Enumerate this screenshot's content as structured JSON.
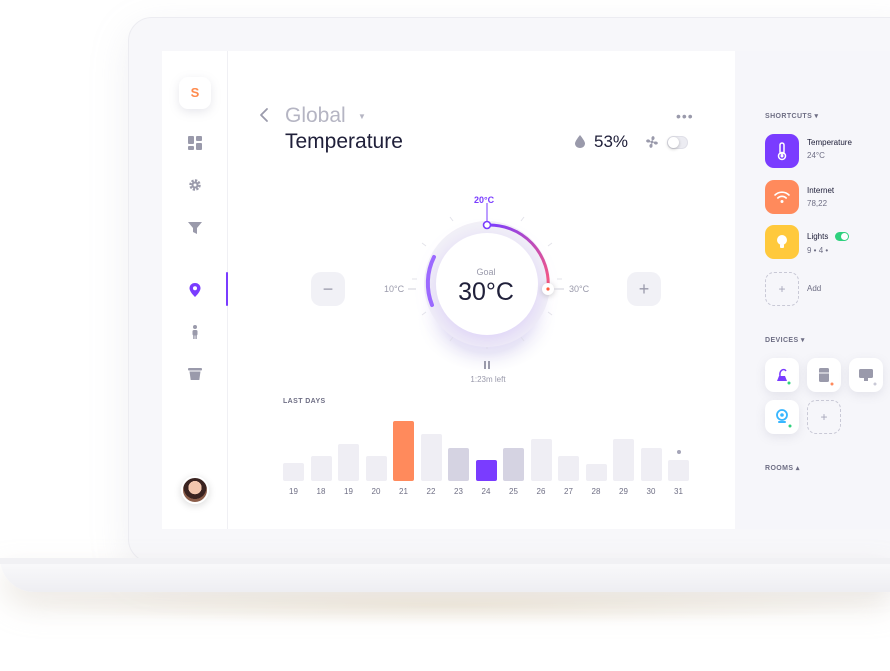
{
  "header": {
    "breadcrumb": "Global",
    "title": "Temperature",
    "humidity": "53%",
    "fan_on": false
  },
  "thermostat": {
    "setpoint_label": "20°C",
    "goal_label": "Goal",
    "goal_value": "30°C",
    "min_label": "10°C",
    "max_label": "30°C",
    "timer": "1:23m left",
    "decrease_label": "−",
    "increase_label": "+"
  },
  "history": {
    "title": "LAST DAYS",
    "days": [
      {
        "label": "19",
        "level": 0.3,
        "color": "#efeef4"
      },
      {
        "label": "18",
        "level": 0.42,
        "color": "#efeef4"
      },
      {
        "label": "19",
        "level": 0.62,
        "color": "#efeef4"
      },
      {
        "label": "20",
        "level": 0.42,
        "color": "#efeef4"
      },
      {
        "label": "21",
        "level": 1.0,
        "color": "#ff8a5c"
      },
      {
        "label": "22",
        "level": 0.78,
        "color": "#efeef4"
      },
      {
        "label": "23",
        "level": 0.55,
        "color": "#d5d3e2"
      },
      {
        "label": "24",
        "level": 0.35,
        "color": "#7a3cff"
      },
      {
        "label": "25",
        "level": 0.55,
        "color": "#d5d3e2"
      },
      {
        "label": "26",
        "level": 0.7,
        "color": "#efeef4"
      },
      {
        "label": "27",
        "level": 0.42,
        "color": "#efeef4"
      },
      {
        "label": "28",
        "level": 0.28,
        "color": "#efeef4"
      },
      {
        "label": "29",
        "level": 0.7,
        "color": "#efeef4"
      },
      {
        "label": "30",
        "level": 0.55,
        "color": "#efeef4"
      },
      {
        "label": "31",
        "level": 0.35,
        "color": "#efeef4"
      }
    ]
  },
  "nav": {
    "logo": "S",
    "items": [
      "dashboard-icon",
      "gear-icon",
      "filter-icon",
      "location-pin-icon",
      "person-icon",
      "trash-icon"
    ],
    "active_item": "location-pin-icon"
  },
  "sidebar": {
    "shortcuts_title": "SHORTCUTS",
    "shortcuts": [
      {
        "name": "Temperature",
        "sub": "24°C",
        "color": "#7a3cff",
        "icon": "thermometer-icon"
      },
      {
        "name": "Internet",
        "sub": "78,22",
        "color": "#ff8a5c",
        "icon": "wifi-icon"
      },
      {
        "name": "Lights",
        "sub": "9 •   4 •",
        "color": "#ffc93c",
        "icon": "lightbulb-icon"
      }
    ],
    "lights_on": true,
    "add_label": "Add",
    "add_symbol": "+",
    "devices_title": "DEVICES",
    "devices": [
      "vacuum-icon",
      "fridge-icon",
      "monitor-icon",
      "webcam-icon"
    ],
    "rooms_title": "ROOMS"
  },
  "colors": {
    "accent": "#7a3cff",
    "orange": "#ff8a5c",
    "yellow": "#ffc93c",
    "green": "#2fd17e"
  }
}
